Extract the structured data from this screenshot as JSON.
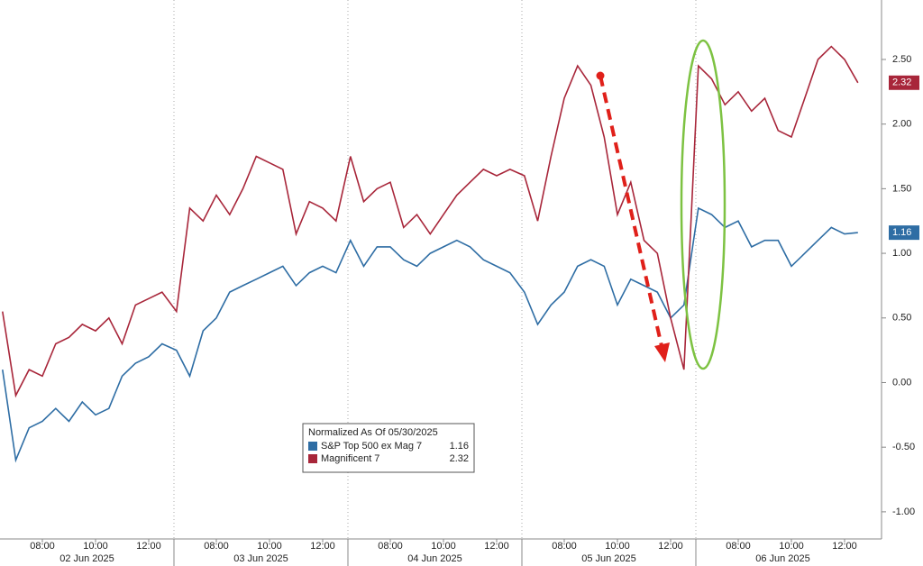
{
  "chart_data": {
    "type": "line",
    "legend_title": "Normalized As Of 05/30/2025",
    "x": [
      "2025-06-02 06:30",
      "2025-06-02 07:00",
      "2025-06-02 07:30",
      "2025-06-02 08:00",
      "2025-06-02 08:30",
      "2025-06-02 09:00",
      "2025-06-02 09:30",
      "2025-06-02 10:00",
      "2025-06-02 10:30",
      "2025-06-02 11:00",
      "2025-06-02 11:30",
      "2025-06-02 12:00",
      "2025-06-02 12:30",
      "2025-06-03 06:30",
      "2025-06-03 07:00",
      "2025-06-03 07:30",
      "2025-06-03 08:00",
      "2025-06-03 08:30",
      "2025-06-03 09:00",
      "2025-06-03 09:30",
      "2025-06-03 10:00",
      "2025-06-03 10:30",
      "2025-06-03 11:00",
      "2025-06-03 11:30",
      "2025-06-03 12:00",
      "2025-06-03 12:30",
      "2025-06-04 06:30",
      "2025-06-04 07:00",
      "2025-06-04 07:30",
      "2025-06-04 08:00",
      "2025-06-04 08:30",
      "2025-06-04 09:00",
      "2025-06-04 09:30",
      "2025-06-04 10:00",
      "2025-06-04 10:30",
      "2025-06-04 11:00",
      "2025-06-04 11:30",
      "2025-06-04 12:00",
      "2025-06-04 12:30",
      "2025-06-05 06:30",
      "2025-06-05 07:00",
      "2025-06-05 07:30",
      "2025-06-05 08:00",
      "2025-06-05 08:30",
      "2025-06-05 09:00",
      "2025-06-05 09:30",
      "2025-06-05 10:00",
      "2025-06-05 10:30",
      "2025-06-05 11:00",
      "2025-06-05 11:30",
      "2025-06-05 12:00",
      "2025-06-05 12:30",
      "2025-06-06 06:30",
      "2025-06-06 07:00",
      "2025-06-06 07:30",
      "2025-06-06 08:00",
      "2025-06-06 08:30",
      "2025-06-06 09:00",
      "2025-06-06 09:30",
      "2025-06-06 10:00",
      "2025-06-06 10:30",
      "2025-06-06 11:00",
      "2025-06-06 11:30",
      "2025-06-06 12:00",
      "2025-06-06 12:30"
    ],
    "series": [
      {
        "name": "S&P Top 500 ex Mag 7",
        "color": "#2e6da4",
        "values": [
          0.1,
          -0.6,
          -0.35,
          -0.3,
          -0.2,
          -0.3,
          -0.15,
          -0.25,
          -0.2,
          0.05,
          0.15,
          0.2,
          0.3,
          0.25,
          0.05,
          0.4,
          0.5,
          0.7,
          0.75,
          0.8,
          0.85,
          0.9,
          0.75,
          0.85,
          0.9,
          0.85,
          1.1,
          0.9,
          1.05,
          1.05,
          0.95,
          0.9,
          1.0,
          1.05,
          1.1,
          1.05,
          0.95,
          0.9,
          0.85,
          0.7,
          0.45,
          0.6,
          0.7,
          0.9,
          0.95,
          0.9,
          0.6,
          0.8,
          0.75,
          0.7,
          0.5,
          0.6,
          1.35,
          1.3,
          1.2,
          1.25,
          1.05,
          1.1,
          1.1,
          0.9,
          1.0,
          1.1,
          1.2,
          1.15,
          1.16
        ]
      },
      {
        "name": "Magnificent 7",
        "color": "#a8263a",
        "values": [
          0.55,
          -0.1,
          0.1,
          0.05,
          0.3,
          0.35,
          0.45,
          0.4,
          0.5,
          0.3,
          0.6,
          0.65,
          0.7,
          0.55,
          1.35,
          1.25,
          1.45,
          1.3,
          1.5,
          1.75,
          1.7,
          1.65,
          1.15,
          1.4,
          1.35,
          1.25,
          1.75,
          1.4,
          1.5,
          1.55,
          1.2,
          1.3,
          1.15,
          1.3,
          1.45,
          1.55,
          1.65,
          1.6,
          1.65,
          1.6,
          1.25,
          1.75,
          2.2,
          2.45,
          2.3,
          1.9,
          1.3,
          1.55,
          1.1,
          1.0,
          0.5,
          0.1,
          2.45,
          2.35,
          2.15,
          2.25,
          2.1,
          2.2,
          1.95,
          1.9,
          2.2,
          2.5,
          2.6,
          2.5,
          2.32
        ]
      }
    ],
    "ylim": [
      -1.21,
      2.96
    ],
    "yticks": [
      {
        "value": -1,
        "label": "-1.00"
      },
      {
        "value": -0.5,
        "label": "-0.50"
      },
      {
        "value": 0,
        "label": "0.00"
      },
      {
        "value": 0.5,
        "label": "0.50"
      },
      {
        "value": 1,
        "label": "1.00"
      },
      {
        "value": 1.5,
        "label": "1.50"
      },
      {
        "value": 2,
        "label": "2.00"
      },
      {
        "value": 2.5,
        "label": "2.50"
      }
    ],
    "xticks": [
      {
        "value": "2025-06-02 08:00",
        "label": "08:00"
      },
      {
        "value": "2025-06-02 10:00",
        "label": "10:00"
      },
      {
        "value": "2025-06-02 12:00",
        "label": "12:00"
      },
      {
        "value": "2025-06-03 08:00",
        "label": "08:00"
      },
      {
        "value": "2025-06-03 10:00",
        "label": "10:00"
      },
      {
        "value": "2025-06-03 12:00",
        "label": "12:00"
      },
      {
        "value": "2025-06-04 08:00",
        "label": "08:00"
      },
      {
        "value": "2025-06-04 10:00",
        "label": "10:00"
      },
      {
        "value": "2025-06-04 12:00",
        "label": "12:00"
      },
      {
        "value": "2025-06-05 08:00",
        "label": "08:00"
      },
      {
        "value": "2025-06-05 10:00",
        "label": "10:00"
      },
      {
        "value": "2025-06-05 12:00",
        "label": "12:00"
      },
      {
        "value": "2025-06-06 08:00",
        "label": "08:00"
      },
      {
        "value": "2025-06-06 10:00",
        "label": "10:00"
      },
      {
        "value": "2025-06-06 12:00",
        "label": "12:00"
      }
    ],
    "day_labels": [
      {
        "value": "2025-06-02",
        "label": "02 Jun 2025"
      },
      {
        "value": "2025-06-03",
        "label": "03 Jun 2025"
      },
      {
        "value": "2025-06-04",
        "label": "04 Jun 2025"
      },
      {
        "value": "2025-06-05",
        "label": "05 Jun 2025"
      },
      {
        "value": "2025-06-06",
        "label": "06 Jun 2025"
      }
    ],
    "grid": true
  }
}
